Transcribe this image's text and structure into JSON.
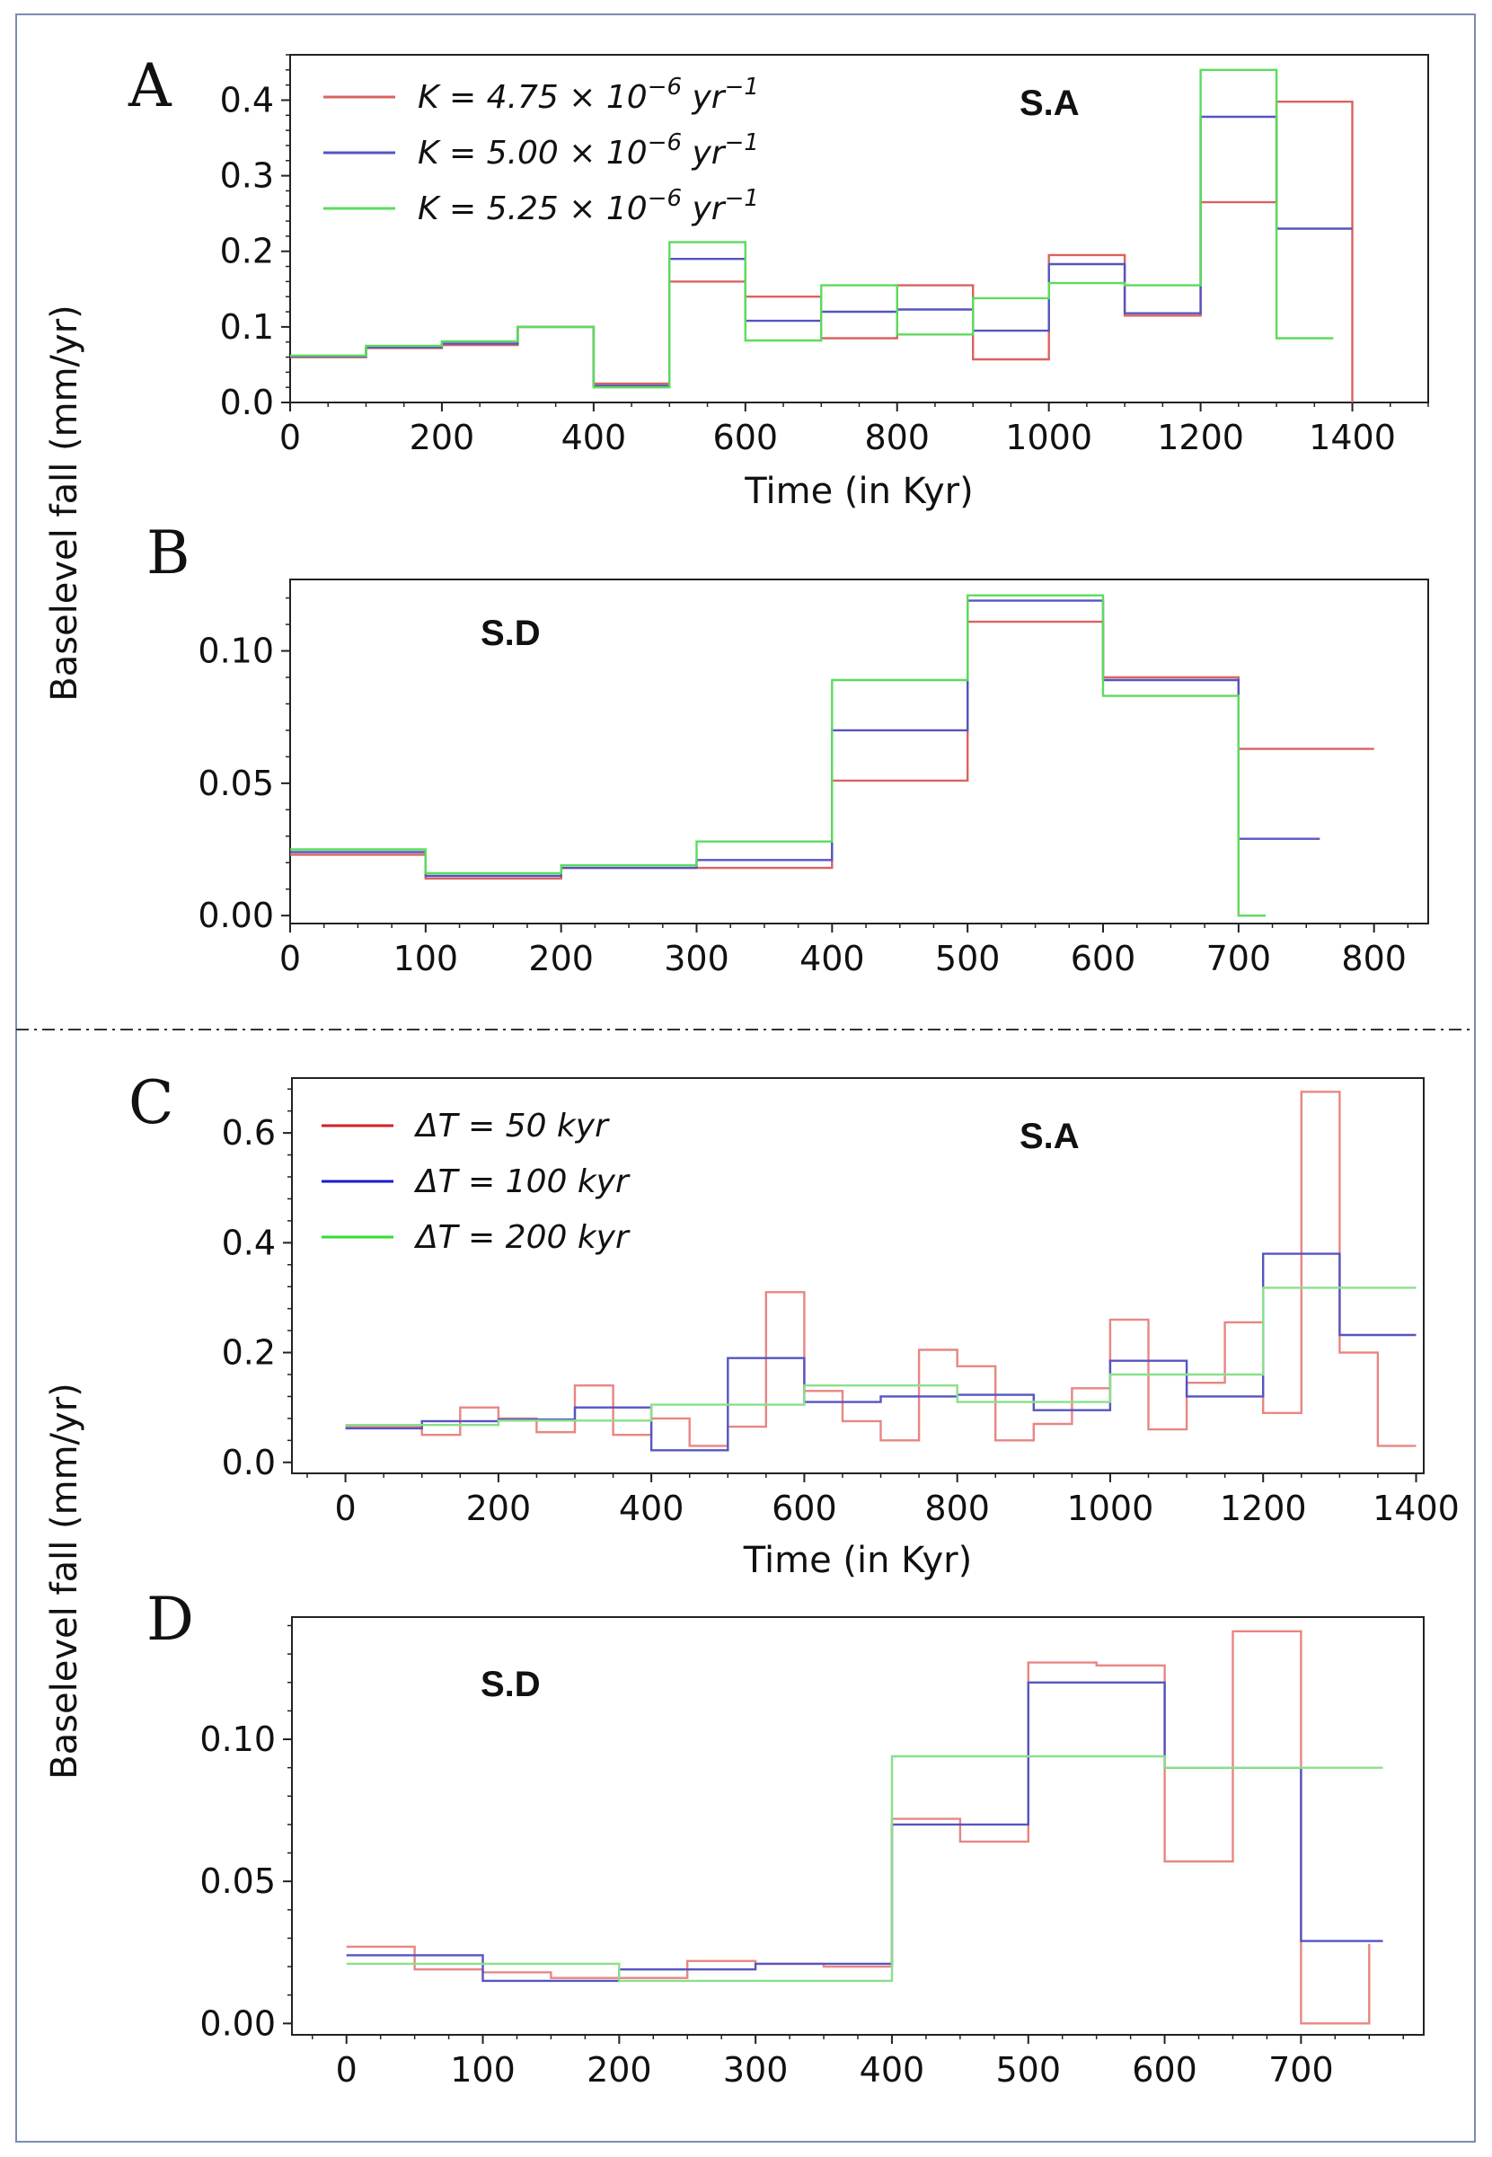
{
  "figure": {
    "shared_ylabel_top": "Baselevel fall (mm/yr)",
    "shared_ylabel_bottom": "Baselevel fall (mm/yr)"
  },
  "chart_data": [
    {
      "panel": "A",
      "site": "S.A",
      "type": "line",
      "step": true,
      "xlabel": "Time (in Kyr)",
      "ylabel": "Baselevel fall (mm/yr)",
      "xlim": [
        0,
        1500
      ],
      "ylim": [
        0,
        0.46
      ],
      "xticks": [
        0,
        200,
        400,
        600,
        800,
        1000,
        1200,
        1400
      ],
      "yticks": [
        0.0,
        0.1,
        0.2,
        0.3,
        0.4
      ],
      "ytick_labels": [
        "0.0",
        "0.1",
        "0.2",
        "0.3",
        "0.4"
      ],
      "legend_position": "top-left",
      "series": [
        {
          "name": "K = 4.75 × 10⁻⁶ yr⁻¹",
          "color": "#d9635f",
          "edges": [
            0,
            100,
            200,
            300,
            400,
            500,
            600,
            700,
            800,
            900,
            1000,
            1100,
            1200,
            1300,
            1400
          ],
          "values": [
            0.06,
            0.072,
            0.076,
            0.1,
            0.025,
            0.16,
            0.14,
            0.085,
            0.155,
            0.057,
            0.195,
            0.115,
            0.265,
            0.398
          ],
          "drop_to": 0
        },
        {
          "name": "K = 5.00 × 10⁻⁶ yr⁻¹",
          "color": "#5555c0",
          "edges": [
            0,
            100,
            200,
            300,
            400,
            500,
            600,
            700,
            800,
            900,
            1000,
            1100,
            1200,
            1300,
            1400
          ],
          "values": [
            0.061,
            0.073,
            0.078,
            0.1,
            0.022,
            0.19,
            0.108,
            0.12,
            0.123,
            0.095,
            0.183,
            0.118,
            0.378,
            0.23
          ]
        },
        {
          "name": "K = 5.25 × 10⁻⁶ yr⁻¹",
          "color": "#5cdc5c",
          "edges": [
            0,
            100,
            200,
            300,
            400,
            500,
            600,
            700,
            800,
            900,
            1000,
            1100,
            1200,
            1300,
            1375
          ],
          "values": [
            0.062,
            0.075,
            0.081,
            0.1,
            0.02,
            0.212,
            0.082,
            0.155,
            0.09,
            0.138,
            0.158,
            0.155,
            0.44,
            0.085
          ]
        }
      ]
    },
    {
      "panel": "B",
      "site": "S.D",
      "type": "line",
      "step": true,
      "xlabel": "",
      "ylabel": "Baselevel fall (mm/yr)",
      "xlim": [
        0,
        840
      ],
      "ylim": [
        -0.003,
        0.127
      ],
      "xticks": [
        0,
        100,
        200,
        300,
        400,
        500,
        600,
        700,
        800
      ],
      "yticks": [
        0.0,
        0.05,
        0.1
      ],
      "ytick_labels": [
        "0.00",
        "0.05",
        "0.10"
      ],
      "series": [
        {
          "name": "K = 4.75 × 10⁻⁶ yr⁻¹",
          "color": "#d9635f",
          "edges": [
            0,
            100,
            200,
            300,
            400,
            500,
            600,
            700,
            800
          ],
          "values": [
            0.023,
            0.014,
            0.018,
            0.018,
            0.051,
            0.111,
            0.09,
            0.063
          ]
        },
        {
          "name": "K = 5.00 × 10⁻⁶ yr⁻¹",
          "color": "#5555c0",
          "edges": [
            0,
            100,
            200,
            300,
            400,
            500,
            600,
            700,
            760
          ],
          "values": [
            0.024,
            0.015,
            0.018,
            0.021,
            0.07,
            0.119,
            0.089,
            0.029
          ]
        },
        {
          "name": "K = 5.25 × 10⁻⁶ yr⁻¹",
          "color": "#5cdc5c",
          "edges": [
            0,
            100,
            200,
            300,
            400,
            500,
            600,
            700,
            720
          ],
          "values": [
            0.025,
            0.016,
            0.019,
            0.028,
            0.089,
            0.121,
            0.083,
            0.0
          ]
        }
      ]
    },
    {
      "panel": "C",
      "site": "S.A",
      "type": "line",
      "step": true,
      "xlabel": "Time (in Kyr)",
      "ylabel": "Baselevel fall (mm/yr)",
      "xlim": [
        -70,
        1410
      ],
      "ylim": [
        -0.02,
        0.7
      ],
      "xticks": [
        0,
        200,
        400,
        600,
        800,
        1000,
        1200,
        1400
      ],
      "yticks": [
        0.0,
        0.2,
        0.4,
        0.6
      ],
      "ytick_labels": [
        "0.0",
        "0.2",
        "0.4",
        "0.6"
      ],
      "legend_position": "top-left",
      "series": [
        {
          "name": "ΔT = 50 kyr",
          "color": "#e88683",
          "legend_color": "#d62020",
          "edges": [
            0,
            50,
            100,
            150,
            200,
            250,
            300,
            350,
            400,
            450,
            500,
            550,
            600,
            650,
            700,
            750,
            800,
            850,
            900,
            950,
            1000,
            1050,
            1100,
            1150,
            1200,
            1250,
            1300,
            1350,
            1400
          ],
          "values": [
            0.065,
            0.065,
            0.05,
            0.1,
            0.08,
            0.055,
            0.14,
            0.05,
            0.08,
            0.03,
            0.065,
            0.31,
            0.13,
            0.075,
            0.04,
            0.205,
            0.175,
            0.04,
            0.07,
            0.135,
            0.26,
            0.06,
            0.145,
            0.255,
            0.09,
            0.675,
            0.2,
            0.03
          ]
        },
        {
          "name": "ΔT = 100 kyr",
          "color": "#5555c0",
          "legend_color": "#1a1ad0",
          "edges": [
            0,
            100,
            200,
            300,
            400,
            500,
            600,
            700,
            800,
            900,
            1000,
            1100,
            1200,
            1300,
            1400
          ],
          "values": [
            0.062,
            0.075,
            0.078,
            0.1,
            0.022,
            0.19,
            0.11,
            0.12,
            0.123,
            0.095,
            0.185,
            0.12,
            0.38,
            0.232
          ]
        },
        {
          "name": "ΔT = 200 kyr",
          "color": "#8ae08a",
          "legend_color": "#33dd33",
          "edges": [
            0,
            200,
            400,
            600,
            800,
            1000,
            1200,
            1400
          ],
          "values": [
            0.068,
            0.076,
            0.105,
            0.14,
            0.11,
            0.16,
            0.318
          ]
        }
      ]
    },
    {
      "panel": "D",
      "site": "S.D",
      "type": "line",
      "step": true,
      "xlabel": "",
      "ylabel": "Baselevel fall (mm/yr)",
      "xlim": [
        -40,
        790
      ],
      "ylim": [
        -0.004,
        0.143
      ],
      "xticks": [
        0,
        100,
        200,
        300,
        400,
        500,
        600,
        700
      ],
      "yticks": [
        0.0,
        0.05,
        0.1
      ],
      "ytick_labels": [
        "0.00",
        "0.05",
        "0.10"
      ],
      "series": [
        {
          "name": "ΔT = 50 kyr",
          "color": "#e88683",
          "edges": [
            0,
            50,
            100,
            150,
            200,
            250,
            300,
            350,
            400,
            450,
            500,
            550,
            600,
            650,
            700,
            750
          ],
          "values": [
            0.027,
            0.019,
            0.018,
            0.016,
            0.016,
            0.022,
            0.021,
            0.02,
            0.072,
            0.064,
            0.127,
            0.126,
            0.057,
            0.138,
            0.0
          ],
          "drop_to": 0.028
        },
        {
          "name": "ΔT = 100 kyr",
          "color": "#5555c0",
          "edges": [
            0,
            100,
            200,
            300,
            400,
            500,
            600,
            700,
            760
          ],
          "values": [
            0.024,
            0.015,
            0.019,
            0.021,
            0.07,
            0.12,
            0.09,
            0.029
          ]
        },
        {
          "name": "ΔT = 200 kyr",
          "color": "#8ae08a",
          "edges": [
            0,
            200,
            400,
            600,
            760
          ],
          "values": [
            0.021,
            0.015,
            0.094,
            0.09
          ]
        }
      ]
    }
  ]
}
